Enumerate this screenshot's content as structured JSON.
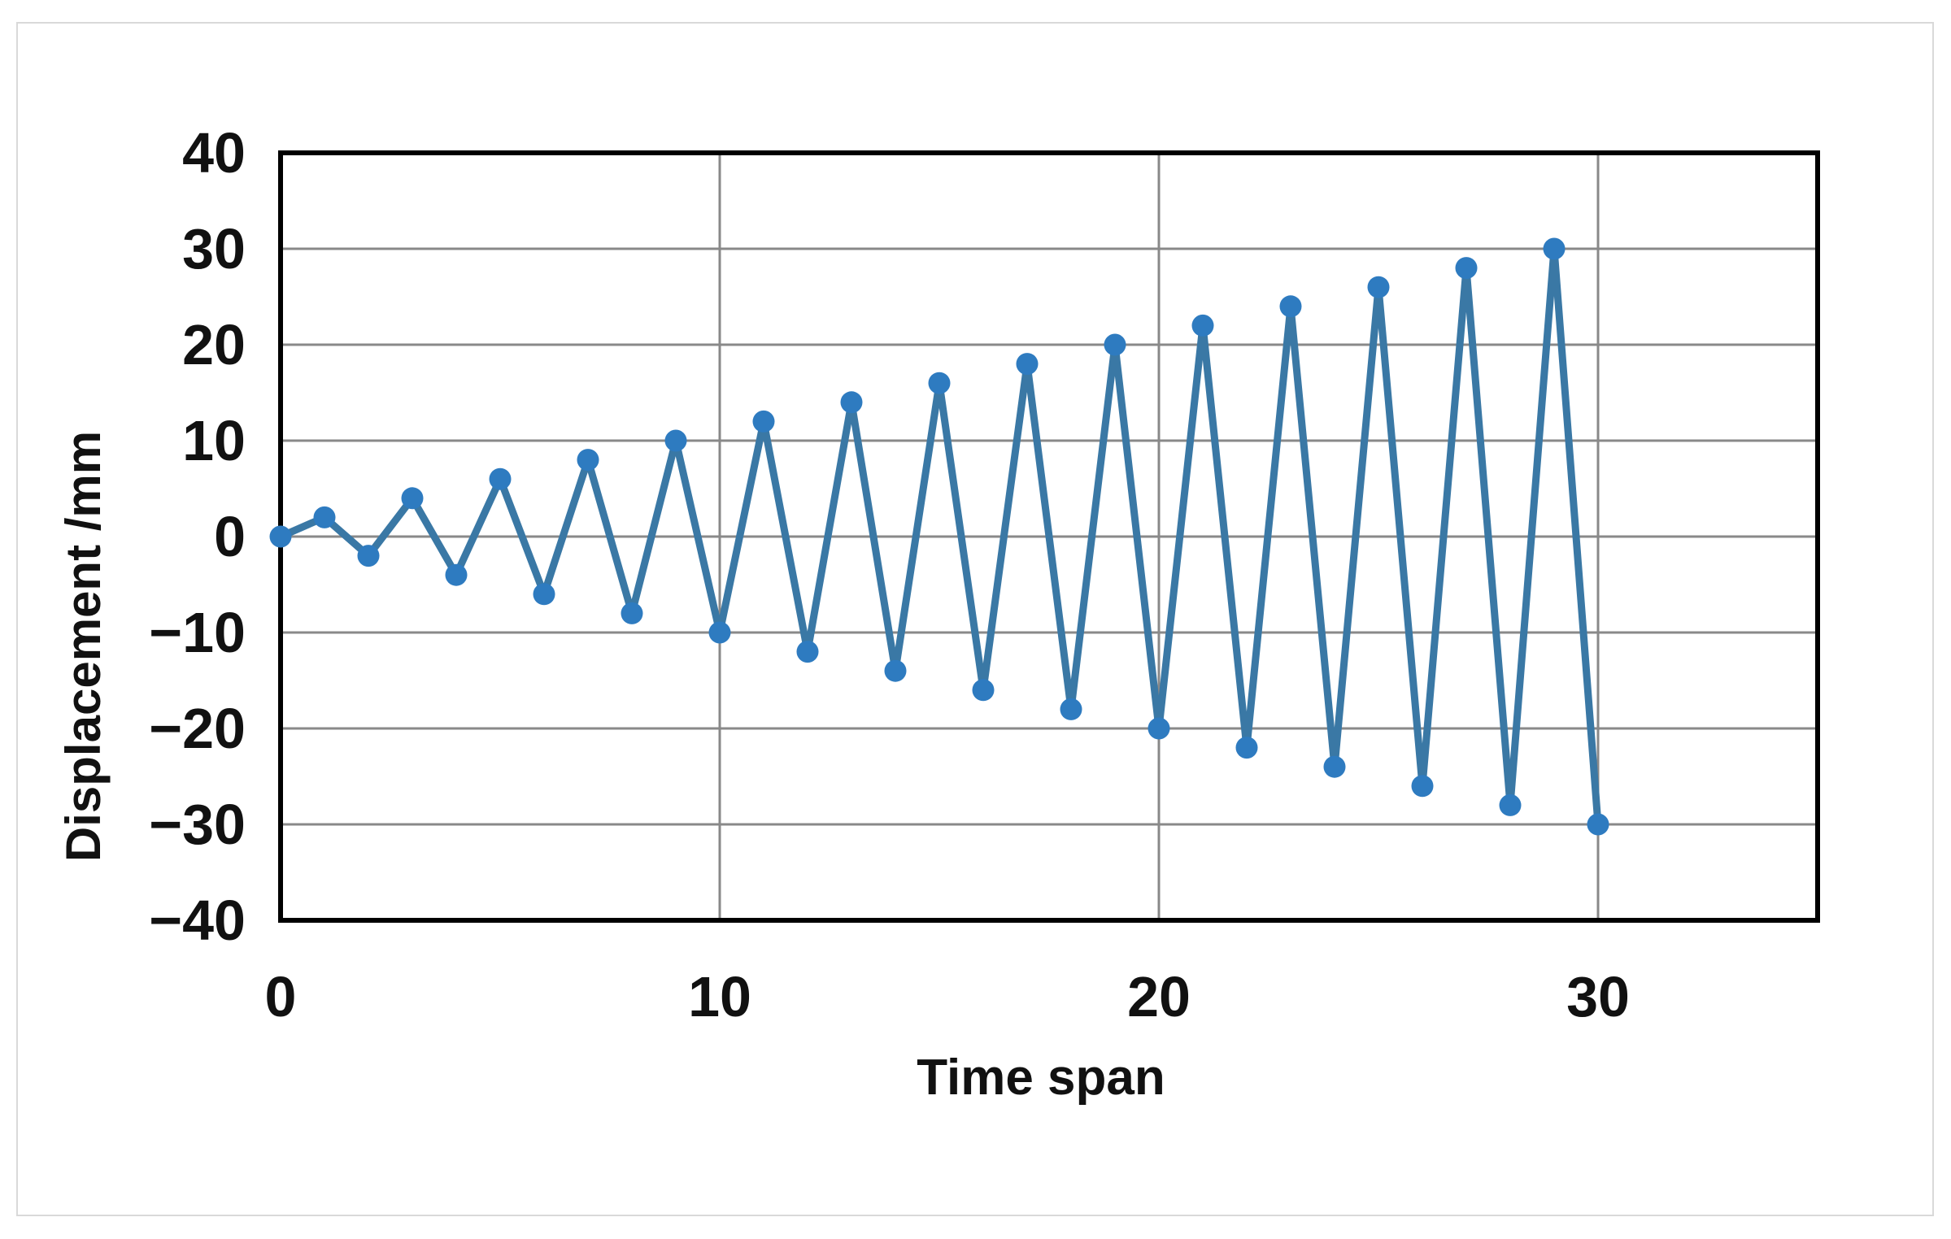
{
  "page": {
    "background": "#ffffff",
    "frame_color": "#d9d9d9"
  },
  "chart_data": {
    "type": "line",
    "title": "",
    "xlabel": "Time span",
    "ylabel": "Displacement /mm",
    "x": [
      0,
      1,
      2,
      3,
      4,
      5,
      6,
      7,
      8,
      9,
      10,
      11,
      12,
      13,
      14,
      15,
      16,
      17,
      18,
      19,
      20,
      21,
      22,
      23,
      24,
      25,
      26,
      27,
      28,
      29,
      30
    ],
    "y": [
      0,
      2,
      -2,
      4,
      -4,
      6,
      -6,
      8,
      -8,
      10,
      -10,
      12,
      -12,
      14,
      -14,
      16,
      -16,
      18,
      -18,
      20,
      -20,
      22,
      -22,
      24,
      -24,
      26,
      -26,
      28,
      -28,
      30,
      -30
    ],
    "series_name": "Displacement",
    "xlim": [
      0,
      35
    ],
    "ylim": [
      -40,
      40
    ],
    "x_ticks": [
      0,
      10,
      20,
      30
    ],
    "y_ticks": [
      40,
      30,
      20,
      10,
      0,
      -10,
      -20,
      -30,
      -40
    ],
    "x_gridlines": [
      10,
      20,
      30
    ],
    "y_gridlines": [
      30,
      20,
      10,
      0,
      -10,
      -20,
      -30
    ],
    "grid": true,
    "legend": "none",
    "marker": "circle",
    "colors": {
      "line": "#3a78a5",
      "marker": "#2e7bc0",
      "grid": "#898989",
      "axis_border": "#000000",
      "text": "#111111"
    }
  }
}
